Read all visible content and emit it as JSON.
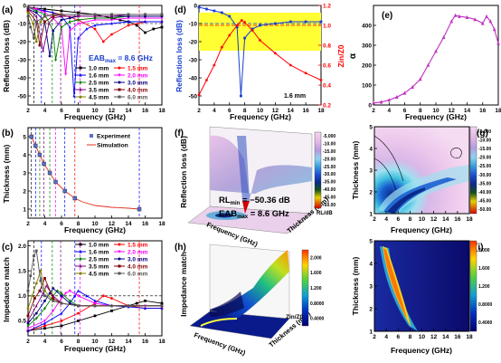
{
  "panels": {
    "a": {
      "letter": "(a)",
      "ylabel": "Reflection loss (dB)",
      "xlabel": "Frequency (GHz)",
      "annotation": "EAB",
      "annotation_sub": "max",
      "annotation_val": " = 8.6 GHz"
    },
    "b": {
      "letter": "(b)",
      "ylabel": "Thickness (mm)",
      "xlabel": "Frequency (GHz)"
    },
    "c": {
      "letter": "(c)",
      "ylabel": "Impedance match",
      "xlabel": "Frequency (GHz)"
    },
    "d": {
      "letter": "(d)",
      "ylabel_left": "Reflection loss (dB)",
      "ylabel_right": "Zin/Z0",
      "xlabel": "Frequency (GHz)",
      "inset": "1.6 mm"
    },
    "e": {
      "letter": "(e)",
      "ylabel": "α",
      "xlabel": "Frequency (GHz)"
    },
    "f": {
      "letter": "(f)",
      "zlabel": "Reflection loss (dB)",
      "xlabel": "Frequency (GHz)",
      "ylabel": "Thickness (mm)",
      "rl_text": "RL",
      "rl_sub": "min",
      "rl_val": " = −50.36 dB",
      "eab_text": "EAB",
      "eab_sub": "max",
      "eab_val": " = 8.6 GHz",
      "cbar_title": "RL/dB",
      "cbar_ticks": [
        "-5.000",
        "-10.00",
        "-15.00",
        "-20.00",
        "-25.00",
        "-30.00",
        "-35.00",
        "-40.00",
        "-45.00",
        "-50.00"
      ]
    },
    "g": {
      "letter": "(g)",
      "ylabel": "Thickness (mm)",
      "xlabel": "Frequency (GHz)",
      "cbar_ticks": [
        "-5.000",
        "-10.00",
        "-15.00",
        "-20.00",
        "-25.00",
        "-30.00",
        "-35.00",
        "-40.00",
        "-45.00",
        "-50.00"
      ]
    },
    "h": {
      "letter": "(h)",
      "zlabel": "Impedance match",
      "xlabel": "Frequency (GHz)",
      "ylabel": "Thickness (mm)",
      "cbar_title": "Zin/Z0",
      "cbar_ticks": [
        "2.000",
        "1.600",
        "1.200",
        "0.8000",
        "0.4000"
      ]
    },
    "i": {
      "letter": "(i)",
      "ylabel": "Thickness (mm)",
      "xlabel": "Frequency (GHz)",
      "cbar_ticks": [
        "2.000",
        "1.600",
        "1.200",
        "0.8000",
        "0.4000"
      ]
    }
  },
  "colors": {
    "t1.0": "#000000",
    "t1.5": "#ff0000",
    "t1.6": "#0000ff",
    "t2.0": "#ff00ff",
    "t2.5": "#008000",
    "t3.0": "#000080",
    "t3.5": "#800080",
    "t4.0": "#800000",
    "t4.5": "#808000",
    "t6.0": "#555555",
    "yellow": "#ffff33"
  },
  "chart_data": [
    {
      "panel": "a",
      "type": "line",
      "xlabel": "Frequency (GHz)",
      "ylabel": "Reflection loss (dB)",
      "xlim": [
        2,
        18
      ],
      "ylim": [
        -55,
        0
      ],
      "xticks": [
        2,
        4,
        6,
        8,
        10,
        12,
        14,
        16,
        18
      ],
      "yticks": [
        0,
        -10,
        -20,
        -30,
        -40,
        -50
      ],
      "dashed_vlines": [
        2.7,
        3.6,
        4.9,
        5.9,
        7.6,
        8.2,
        15.3
      ],
      "series": [
        {
          "name": "1.0 mm",
          "x": [
            2,
            4,
            6,
            8,
            10,
            12,
            13,
            14,
            15,
            16,
            17,
            18
          ],
          "y": [
            -1,
            -2,
            -3,
            -4,
            -5,
            -7,
            -8,
            -9,
            -11,
            -15,
            -13,
            -12
          ]
        },
        {
          "name": "1.5 mm",
          "x": [
            2,
            4,
            6,
            8,
            10,
            11,
            12,
            14,
            16,
            18
          ],
          "y": [
            -1,
            -3,
            -5,
            -8,
            -13,
            -20,
            -16,
            -11,
            -9,
            -9
          ]
        },
        {
          "name": "1.6 mm",
          "x": [
            2,
            3,
            4,
            5,
            6,
            7,
            7.5,
            8,
            9,
            10,
            12,
            14,
            16,
            18
          ],
          "y": [
            -1,
            -2,
            -3,
            -4,
            -6,
            -12,
            -50,
            -18,
            -13,
            -11,
            -10,
            -9,
            -9,
            -9
          ]
        },
        {
          "name": "2.0 mm",
          "x": [
            2,
            3,
            4,
            5,
            6,
            6.5,
            7,
            8,
            10,
            12,
            14,
            16,
            18
          ],
          "y": [
            -1,
            -2,
            -4,
            -7,
            -12,
            -38,
            -14,
            -10,
            -8,
            -8,
            -7,
            -7,
            -7
          ]
        },
        {
          "name": "2.5 mm",
          "x": [
            2,
            3,
            4,
            5,
            5.3,
            6,
            7,
            8,
            10,
            12,
            14,
            16,
            18
          ],
          "y": [
            -1,
            -3,
            -5,
            -14,
            -30,
            -12,
            -9,
            -8,
            -7,
            -7,
            -6,
            -6,
            -6
          ]
        },
        {
          "name": "3.0 mm",
          "x": [
            2,
            3,
            4,
            4.6,
            5,
            6,
            7,
            8,
            10,
            12,
            14,
            16,
            18
          ],
          "y": [
            -2,
            -4,
            -9,
            -28,
            -14,
            -8,
            -7,
            -6,
            -6,
            -6,
            -6,
            -6,
            -6
          ]
        },
        {
          "name": "3.5 mm",
          "x": [
            2,
            3,
            3.8,
            4.5,
            5,
            6,
            8,
            10,
            12,
            14,
            16,
            18
          ],
          "y": [
            -2,
            -6,
            -25,
            -10,
            -7,
            -6,
            -6,
            -6,
            -6,
            -5,
            -5,
            -5
          ]
        },
        {
          "name": "4.0 mm",
          "x": [
            2,
            3,
            3.4,
            4,
            5,
            6,
            8,
            10,
            12,
            14,
            16,
            18
          ],
          "y": [
            -3,
            -9,
            -22,
            -9,
            -6,
            -5,
            -5,
            -5,
            -5,
            -5,
            -5,
            -5
          ]
        },
        {
          "name": "4.5 mm",
          "x": [
            2,
            2.6,
            3,
            3.5,
            4,
            5,
            6,
            8,
            10,
            12,
            14,
            16,
            18
          ],
          "y": [
            -4,
            -10,
            -20,
            -9,
            -6,
            -5,
            -5,
            -5,
            -5,
            -5,
            -5,
            -5,
            -5
          ]
        },
        {
          "name": "6.0 mm",
          "x": [
            2,
            2.3,
            2.7,
            3,
            4,
            5,
            6,
            8,
            10,
            12,
            14,
            16,
            18
          ],
          "y": [
            -6,
            -12,
            -18,
            -9,
            -6,
            -5,
            -5,
            -5,
            -5,
            -5,
            -5,
            -5,
            -5
          ]
        }
      ]
    },
    {
      "panel": "b",
      "type": "scatter",
      "xlabel": "Frequency (GHz)",
      "ylabel": "Thickness (mm)",
      "xlim": [
        2,
        18
      ],
      "ylim": [
        0.5,
        5.5
      ],
      "xticks": [
        2,
        4,
        6,
        8,
        10,
        12,
        14,
        16,
        18
      ],
      "yticks": [
        1,
        2,
        3,
        4,
        5
      ],
      "series": [
        {
          "name": "Experiment",
          "x": [
            2.4,
            2.9,
            3.4,
            3.9,
            4.6,
            5.3,
            6.4,
            7.6,
            15.3
          ],
          "y": [
            5,
            4.5,
            4,
            3.5,
            3,
            2.5,
            2,
            1.6,
            1
          ]
        },
        {
          "name": "Simulation",
          "x": [
            2.4,
            2.9,
            3.4,
            3.9,
            4.6,
            5.3,
            6.4,
            7.6,
            8.5,
            10,
            12,
            14,
            15.3
          ],
          "y": [
            5,
            4.5,
            4,
            3.5,
            3,
            2.5,
            2,
            1.6,
            1.4,
            1.2,
            1.1,
            1.05,
            1
          ]
        }
      ]
    },
    {
      "panel": "c",
      "type": "line",
      "xlabel": "Frequency (GHz)",
      "ylabel": "Impedance match",
      "xlim": [
        2,
        18
      ],
      "ylim": [
        0.2,
        2.1
      ],
      "xticks": [
        2,
        4,
        6,
        8,
        10,
        12,
        14,
        16,
        18
      ],
      "yticks": [
        0.5,
        1.0,
        1.5,
        2.0
      ],
      "series": [
        {
          "name": "1.0 mm",
          "x": [
            2,
            4,
            6,
            8,
            10,
            12,
            14,
            15,
            16,
            18
          ],
          "y": [
            0.3,
            0.35,
            0.4,
            0.5,
            0.6,
            0.7,
            0.8,
            0.85,
            0.9,
            0.85
          ]
        },
        {
          "name": "1.5 mm",
          "x": [
            2,
            4,
            6,
            8,
            10,
            11,
            12,
            14,
            16,
            18
          ],
          "y": [
            0.3,
            0.4,
            0.5,
            0.65,
            0.85,
            1.0,
            0.95,
            0.8,
            0.75,
            0.75
          ]
        },
        {
          "name": "1.6 mm",
          "x": [
            2,
            4,
            6,
            7,
            7.6,
            8,
            9,
            10,
            12,
            14,
            16,
            18
          ],
          "y": [
            0.3,
            0.45,
            0.65,
            0.85,
            1.0,
            1.1,
            1.0,
            0.9,
            0.8,
            0.78,
            0.75,
            0.75
          ]
        },
        {
          "name": "2.0 mm",
          "x": [
            2,
            4,
            5,
            6,
            6.5,
            7,
            8,
            10,
            12,
            14,
            16,
            18
          ],
          "y": [
            0.35,
            0.5,
            0.7,
            0.95,
            1.05,
            1.1,
            1.0,
            0.85,
            0.8,
            0.8,
            0.8,
            0.8
          ]
        },
        {
          "name": "2.5 mm",
          "x": [
            2,
            3,
            4,
            5,
            5.5,
            6,
            7,
            8,
            10,
            12,
            14,
            18
          ],
          "y": [
            0.4,
            0.55,
            0.75,
            1.0,
            1.1,
            1.05,
            0.9,
            0.8,
            0.8,
            0.8,
            0.8,
            0.8
          ]
        },
        {
          "name": "3.0 mm",
          "x": [
            2,
            3,
            4,
            4.6,
            5,
            6,
            7,
            8,
            10,
            14,
            18
          ],
          "y": [
            0.45,
            0.65,
            0.9,
            1.05,
            1.15,
            1.0,
            0.85,
            0.8,
            0.8,
            0.8,
            0.8
          ]
        },
        {
          "name": "3.5 mm",
          "x": [
            2,
            3,
            3.8,
            4.2,
            5,
            6,
            8,
            10,
            14,
            18
          ],
          "y": [
            0.5,
            0.8,
            1.05,
            1.2,
            1.0,
            0.85,
            0.8,
            0.8,
            0.8,
            0.8
          ]
        },
        {
          "name": "4.0 mm",
          "x": [
            2,
            2.8,
            3.4,
            4,
            5,
            6,
            8,
            10,
            14,
            18
          ],
          "y": [
            0.6,
            0.95,
            1.1,
            1.35,
            0.95,
            0.85,
            0.8,
            0.8,
            0.8,
            0.8
          ]
        },
        {
          "name": "4.5 mm",
          "x": [
            2,
            2.5,
            3,
            3.5,
            4,
            5,
            6,
            8,
            10,
            14,
            18
          ],
          "y": [
            0.75,
            1.0,
            1.25,
            1.5,
            1.1,
            0.9,
            0.85,
            0.8,
            0.8,
            0.8,
            0.8
          ]
        },
        {
          "name": "6.0 mm",
          "x": [
            2,
            2.3,
            2.7,
            3,
            3.5,
            4,
            5,
            6,
            8,
            10,
            14,
            18
          ],
          "y": [
            1.1,
            1.4,
            1.8,
            1.9,
            1.3,
            1.0,
            0.9,
            0.85,
            0.8,
            0.8,
            0.8,
            0.8
          ]
        }
      ]
    },
    {
      "panel": "d",
      "type": "line",
      "xlabel": "Frequency (GHz)",
      "ylabel": "Reflection loss (dB)",
      "ylabel_right": "Zin/Z0",
      "xlim": [
        2,
        18
      ],
      "ylim": [
        -55,
        0
      ],
      "ylim_right": [
        0.2,
        1.2
      ],
      "xticks": [
        2,
        4,
        6,
        8,
        10,
        12,
        14,
        16,
        18
      ],
      "yticks": [
        0,
        -10,
        -20,
        -30,
        -40,
        -50
      ],
      "yticks_right": [
        0.2,
        0.4,
        0.6,
        0.8,
        1.0,
        1.2
      ],
      "band_ylim": [
        -25,
        -4
      ],
      "band_xlim": [
        2,
        18
      ],
      "series": [
        {
          "name": "RL",
          "x": [
            2,
            3,
            4,
            5,
            6,
            7,
            7.5,
            8,
            9,
            10,
            12,
            14,
            16,
            18
          ],
          "y": [
            -1,
            -2,
            -3,
            -4,
            -6,
            -12,
            -50,
            -18,
            -13,
            -11,
            -10,
            -9,
            -9,
            -9
          ]
        },
        {
          "name": "Zin/Z0",
          "x": [
            2,
            3,
            4,
            5,
            6,
            7,
            7.6,
            8,
            9,
            10,
            12,
            14,
            16,
            18
          ],
          "y": [
            0.3,
            0.45,
            0.6,
            0.78,
            0.9,
            1.0,
            1.05,
            1.03,
            0.95,
            0.85,
            0.72,
            0.6,
            0.52,
            0.45
          ]
        }
      ]
    },
    {
      "panel": "e",
      "type": "line",
      "xlabel": "Frequency (GHz)",
      "ylabel": "α",
      "xlim": [
        2,
        18
      ],
      "ylim": [
        0,
        500
      ],
      "xticks": [
        2,
        4,
        6,
        8,
        10,
        12,
        14,
        16,
        18
      ],
      "yticks": [
        0,
        100,
        200,
        300,
        400
      ],
      "series": [
        {
          "name": "α",
          "x": [
            2,
            3,
            4,
            5,
            6,
            7,
            8,
            9,
            10,
            11,
            12,
            12.5,
            13,
            14,
            15,
            16,
            16.5,
            17,
            17.5,
            18
          ],
          "y": [
            10,
            15,
            25,
            40,
            60,
            90,
            130,
            200,
            270,
            340,
            420,
            450,
            445,
            440,
            430,
            410,
            445,
            420,
            380,
            310
          ]
        }
      ]
    },
    {
      "panel": "f",
      "type": "heatmap",
      "xlabel": "Frequency (GHz)",
      "ylabel": "Thickness (mm)",
      "zlabel": "Reflection loss (dB)",
      "colorbar_label": "RL/dB",
      "colorbar_range": [
        -50,
        -5
      ],
      "xlim": [
        2,
        18
      ],
      "ylim": [
        1,
        5
      ]
    },
    {
      "panel": "g",
      "type": "heatmap",
      "xlabel": "Frequency (GHz)",
      "ylabel": "Thickness (mm)",
      "colorbar_range": [
        -50,
        -5
      ],
      "xlim": [
        2,
        18
      ],
      "ylim": [
        1,
        5
      ],
      "xticks": [
        2,
        4,
        6,
        8,
        10,
        12,
        14,
        16,
        18
      ],
      "yticks": [
        1,
        2,
        3,
        4,
        5
      ]
    },
    {
      "panel": "h",
      "type": "heatmap",
      "xlabel": "Frequency (GHz)",
      "ylabel": "Thickness (mm)",
      "zlabel": "Impedance match",
      "colorbar_label": "Zin/Z0",
      "colorbar_range": [
        0.4,
        2.0
      ],
      "xlim": [
        2,
        18
      ],
      "ylim": [
        1,
        5
      ]
    },
    {
      "panel": "i",
      "type": "heatmap",
      "xlabel": "Frequency (GHz)",
      "ylabel": "Thickness (mm)",
      "colorbar_range": [
        0.4,
        2.0
      ],
      "xlim": [
        2,
        18
      ],
      "ylim": [
        1,
        5
      ],
      "xticks": [
        2,
        4,
        6,
        8,
        10,
        12,
        14,
        16,
        18
      ],
      "yticks": [
        1,
        2,
        3,
        4,
        5
      ]
    }
  ]
}
